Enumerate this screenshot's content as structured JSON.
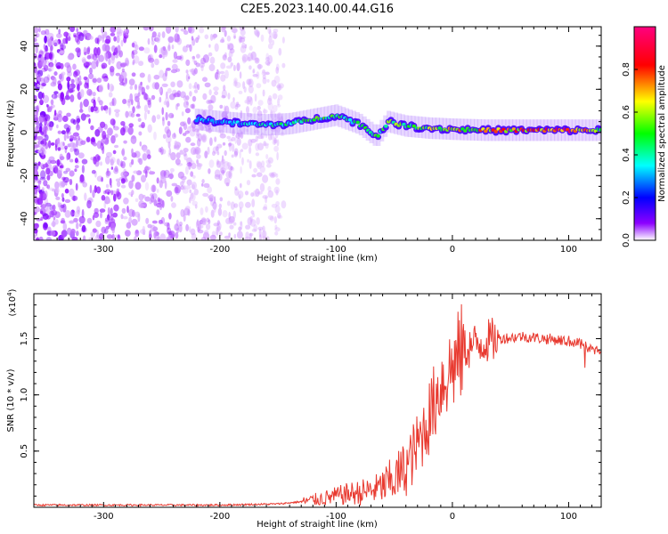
{
  "title": "C2E5.2023.140.00.44.G16",
  "chart_data": [
    {
      "type": "heatmap",
      "xlabel": "Height of straight line (km)",
      "ylabel": "Frequency (Hz)",
      "xlim": [
        -360,
        128
      ],
      "ylim": [
        -50,
        49
      ],
      "xticks": [
        -300,
        -200,
        -100,
        0,
        100
      ],
      "yticks": [
        -40,
        -20,
        0,
        20,
        40
      ],
      "colorbar": {
        "label": "Normalized spectral amplitude",
        "range": [
          0,
          1
        ],
        "ticks": [
          0.0,
          0.2,
          0.4,
          0.6,
          0.8
        ],
        "colormap": [
          "#ffffff",
          "#8c00ff",
          "#0000ff",
          "#00ffff",
          "#00ff00",
          "#ffff00",
          "#ff0000",
          "#ff007f"
        ]
      },
      "noise_region_x": [
        -360,
        -145
      ],
      "ridge": [
        {
          "x": -220,
          "f": 6,
          "amp": 0.3
        },
        {
          "x": -200,
          "f": 5,
          "amp": 0.35
        },
        {
          "x": -180,
          "f": 4,
          "amp": 0.35
        },
        {
          "x": -160,
          "f": 3.5,
          "amp": 0.4
        },
        {
          "x": -140,
          "f": 4,
          "amp": 0.45
        },
        {
          "x": -120,
          "f": 6,
          "amp": 0.5
        },
        {
          "x": -100,
          "f": 8,
          "amp": 0.5
        },
        {
          "x": -80,
          "f": 4,
          "amp": 0.45
        },
        {
          "x": -65,
          "f": -2,
          "amp": 0.5
        },
        {
          "x": -55,
          "f": 5,
          "amp": 0.55
        },
        {
          "x": -40,
          "f": 3,
          "amp": 0.55
        },
        {
          "x": -20,
          "f": 2,
          "amp": 0.6
        },
        {
          "x": 0,
          "f": 1.5,
          "amp": 0.65
        },
        {
          "x": 30,
          "f": 1,
          "amp": 0.7
        },
        {
          "x": 60,
          "f": 1,
          "amp": 0.75
        },
        {
          "x": 90,
          "f": 1,
          "amp": 0.85
        },
        {
          "x": 110,
          "f": 1,
          "amp": 0.8
        },
        {
          "x": 128,
          "f": 1,
          "amp": 0.6
        }
      ]
    },
    {
      "type": "line",
      "xlabel": "Height of straight line (km)",
      "ylabel": "SNR (10 * v/v)",
      "yscale_label": "(x10",
      "yscale_exp": "4",
      "xlim": [
        -360,
        128
      ],
      "ylim": [
        0,
        1.9
      ],
      "xticks": [
        -300,
        -200,
        -100,
        0,
        100
      ],
      "yticks": [
        0.5,
        1.0,
        1.5
      ],
      "ytick_labels": [
        "0.5",
        "1.0",
        "1.5"
      ],
      "series": [
        {
          "color": "#e8392f",
          "x": [
            -360,
            -300,
            -250,
            -200,
            -150,
            -130,
            -110,
            -100,
            -90,
            -80,
            -70,
            -60,
            -50,
            -40,
            -30,
            -20,
            -10,
            0,
            10,
            20,
            30,
            40,
            60,
            80,
            100,
            110,
            120,
            128
          ],
          "y": [
            0.02,
            0.02,
            0.02,
            0.02,
            0.03,
            0.05,
            0.08,
            0.1,
            0.12,
            0.13,
            0.15,
            0.18,
            0.25,
            0.35,
            0.55,
            0.8,
            1.1,
            1.25,
            1.4,
            1.45,
            1.48,
            1.5,
            1.52,
            1.5,
            1.48,
            1.45,
            1.4,
            1.38
          ]
        }
      ]
    }
  ]
}
